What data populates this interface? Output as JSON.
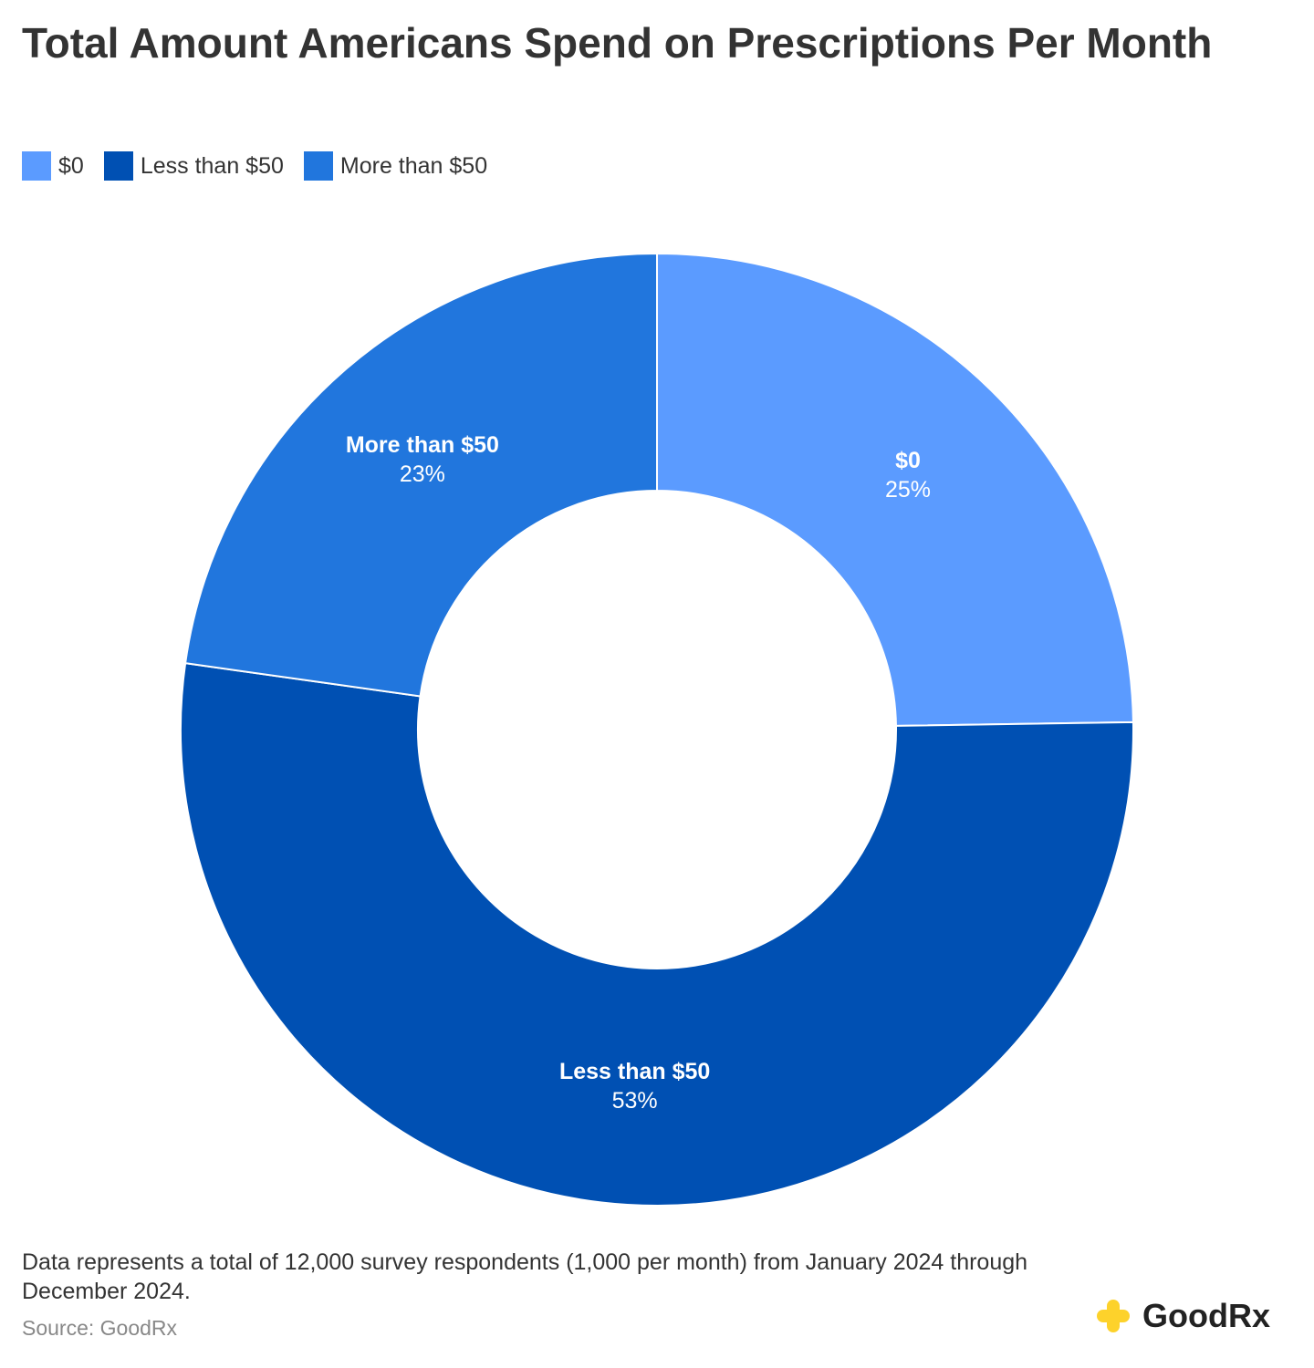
{
  "chart_data": {
    "type": "donut",
    "title": "Total Amount Americans Spend on Prescriptions Per Month",
    "categories": [
      "$0",
      "Less than $50",
      "More than $50"
    ],
    "values": [
      25,
      53,
      23
    ],
    "value_labels": [
      "25%",
      "53%",
      "23%"
    ],
    "colors": [
      "#5b9bff",
      "#0050b3",
      "#2176dd"
    ],
    "legend": "top-left",
    "note": "Data represents a total of 12,000 survey respondents (1,000 per month) from January 2024 through December 2024.",
    "source": "Source: GoodRx",
    "brand": "GoodRx"
  }
}
